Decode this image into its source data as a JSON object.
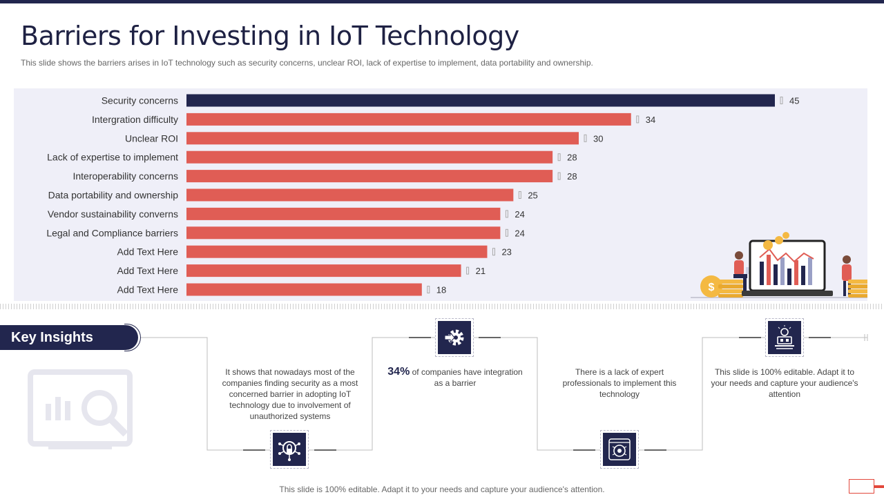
{
  "header": {
    "title": "Barriers for Investing in IoT Technology",
    "subtitle": "This slide shows the barriers arises in IoT technology such as security concerns, unclear ROI, lack of expertise to implement, data portability and ownership."
  },
  "chart_data": {
    "type": "bar",
    "orientation": "horizontal",
    "title": "",
    "xlabel": "",
    "ylabel": "",
    "xlim": [
      0,
      45
    ],
    "categories": [
      "Security concerns",
      "Intergration difficulty",
      "Unclear ROI",
      "Lack of expertise to implement",
      "Interoperability concerns",
      "Data portability and ownership",
      "Vendor sustainability converns",
      "Legal and Compliance barriers",
      "Add Text Here",
      "Add Text Here",
      "Add Text Here"
    ],
    "values": [
      45,
      34,
      30,
      28,
      28,
      25,
      24,
      24,
      23,
      21,
      18
    ],
    "data_labels": [
      "45",
      "34",
      "30",
      "28",
      "28",
      "25",
      "24",
      "24",
      "23",
      "21",
      "18"
    ],
    "highlight_index": 0,
    "colors": {
      "highlight": "#22264e",
      "default": "#e05d55"
    }
  },
  "key_insights": {
    "label": "Key Insights",
    "items": [
      {
        "text": "It shows that nowadays most of the companies finding security as a most concerned barrier in adopting IoT technology due to involvement of unauthorized systems",
        "icon": "security-lock-network-icon"
      },
      {
        "highlight": "34%",
        "text": " of companies have integration as a barrier",
        "icon": "gear-arrow-icon"
      },
      {
        "text": "There is a lack of expert professionals to implement this technology",
        "icon": "chip-network-icon"
      },
      {
        "text": "This slide is 100% editable. Adapt it to your needs and capture your audience's attention",
        "icon": "tools-idea-icon"
      }
    ]
  },
  "footer": {
    "text": "This slide is 100% editable. Adapt it to your needs and capture your audience's attention."
  },
  "colors": {
    "navy": "#22264e",
    "red": "#e05d55",
    "panel": "#efeff8"
  }
}
